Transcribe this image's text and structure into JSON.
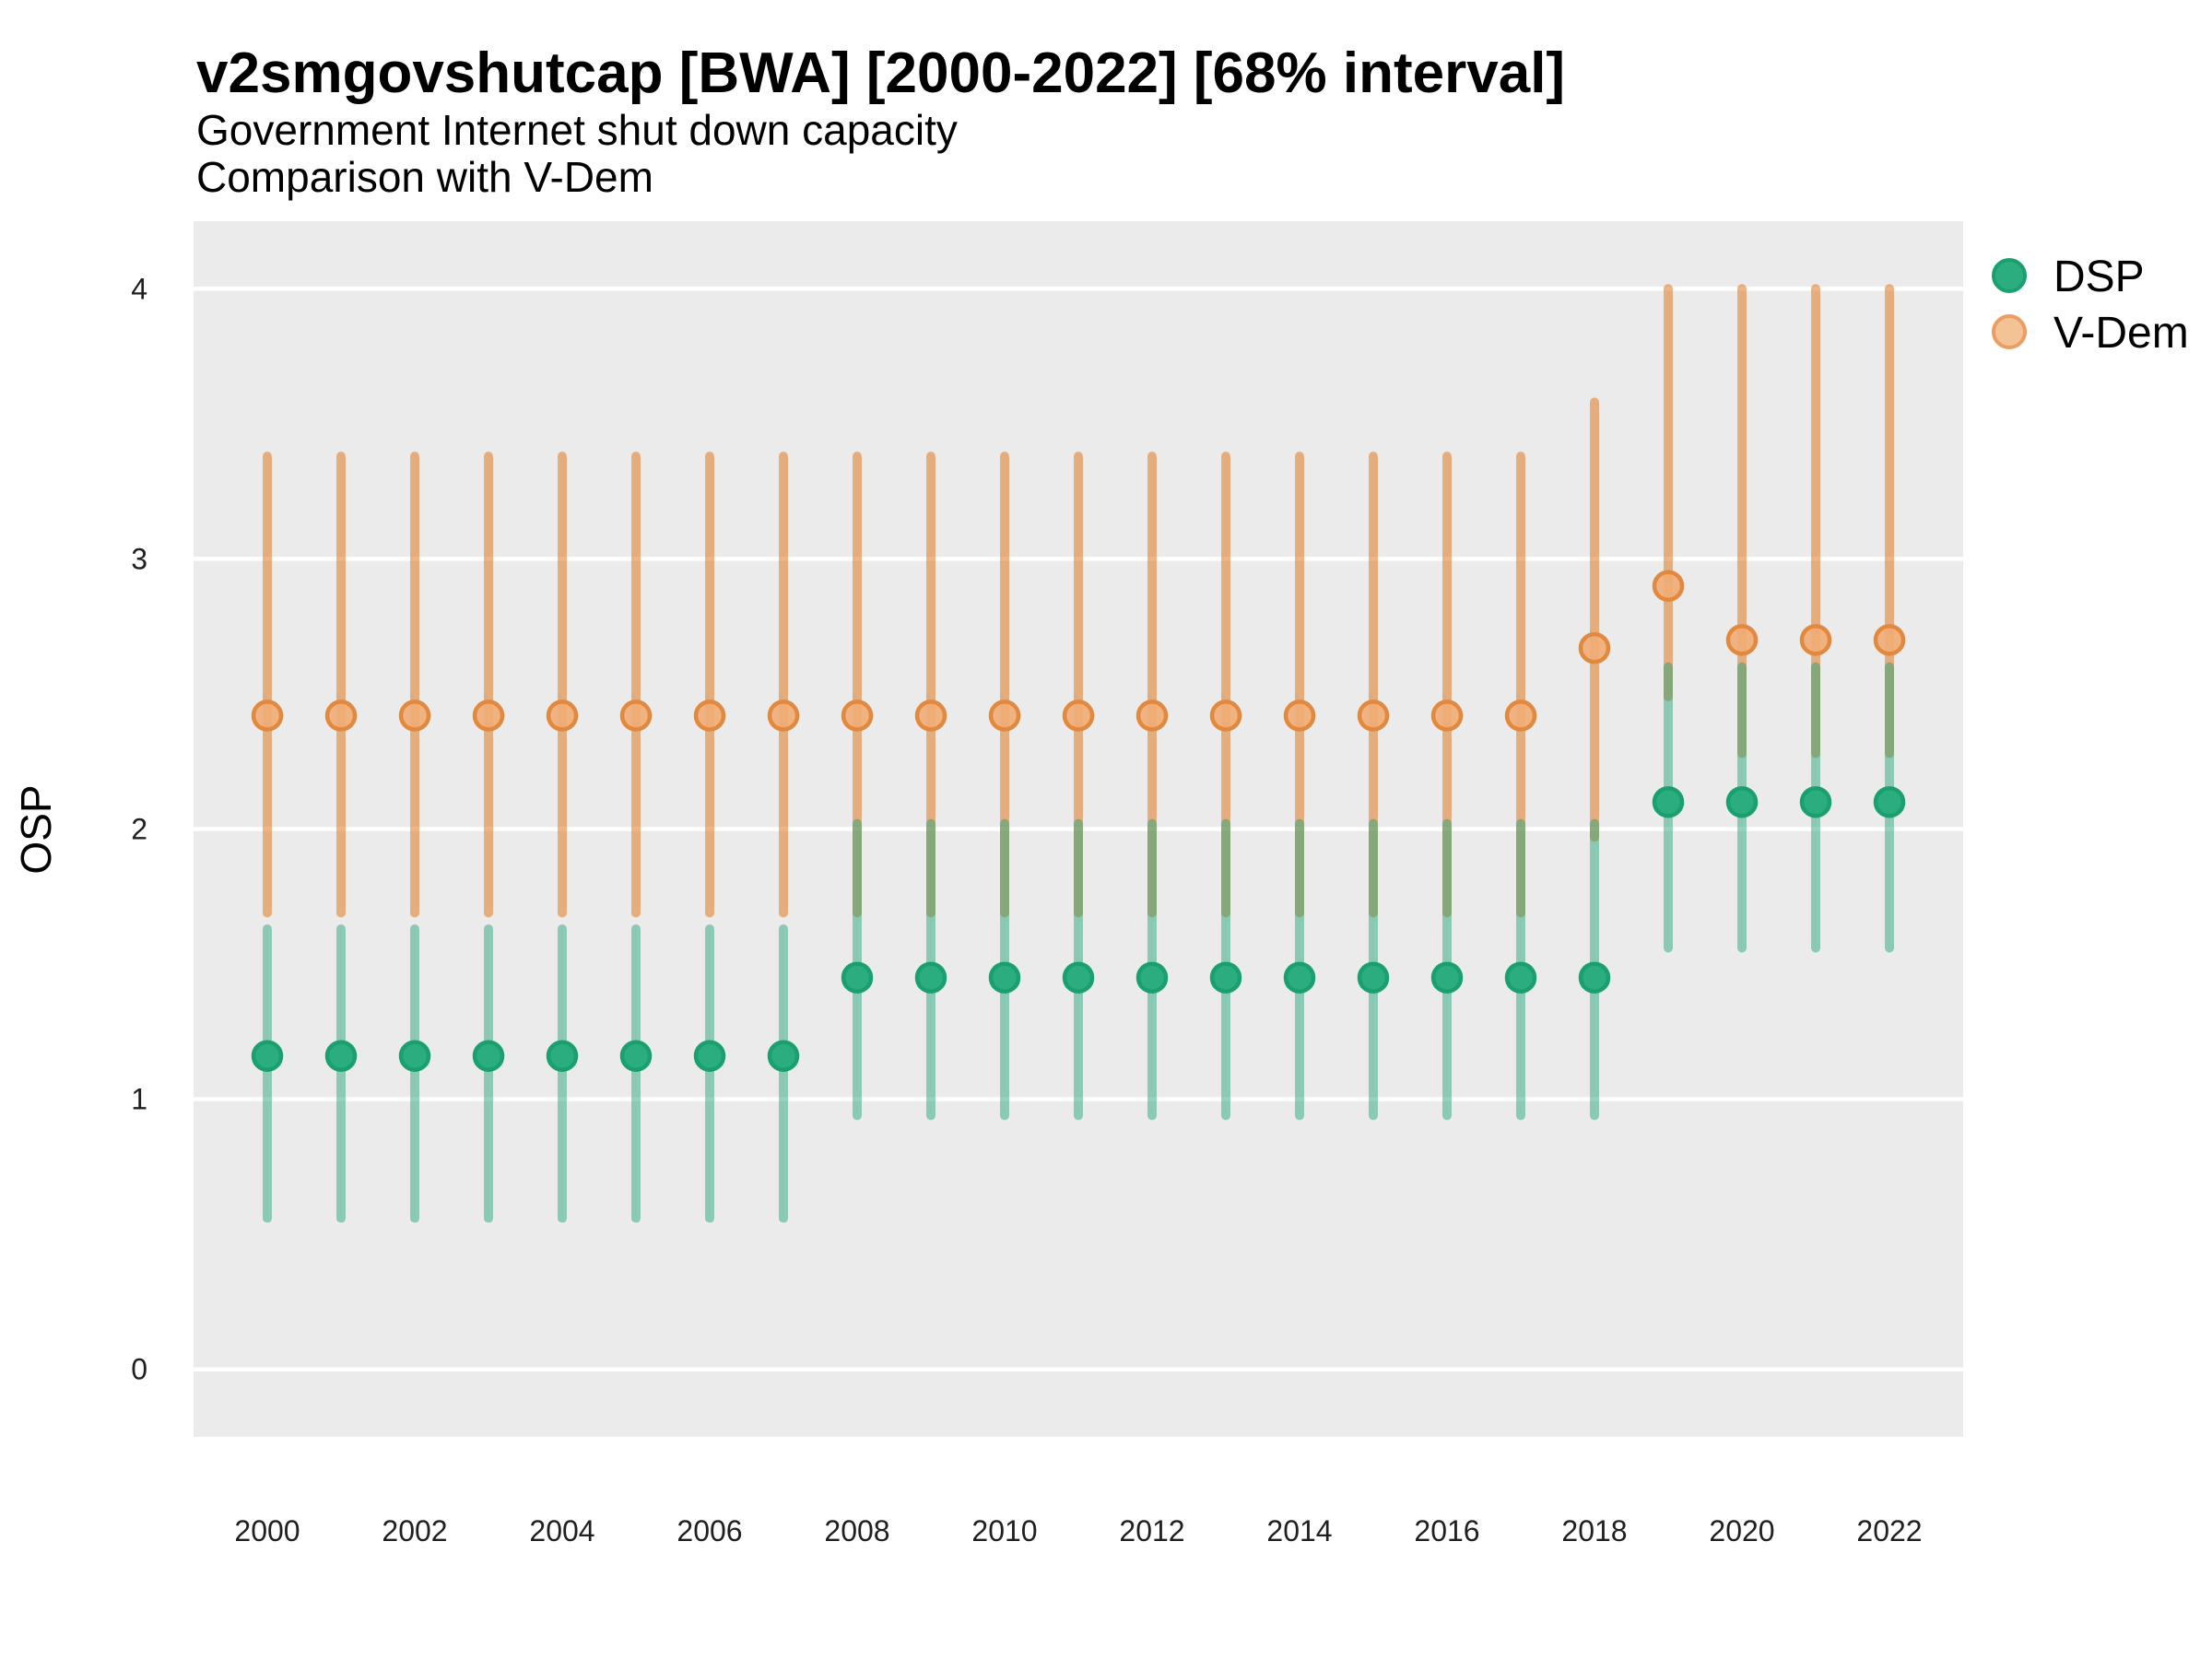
{
  "chart_data": {
    "type": "scatter",
    "title": "v2smgovshutcap [BWA] [2000-2022] [68% interval]",
    "subtitle1": "Government Internet shut down capacity",
    "subtitle2": "Comparison with V-Dem",
    "xlabel": "",
    "ylabel": "OSP",
    "xlim": [
      1999,
      2023
    ],
    "ylim": [
      -0.25,
      4.25
    ],
    "x_ticks": [
      2000,
      2002,
      2004,
      2006,
      2008,
      2010,
      2012,
      2014,
      2016,
      2018,
      2020,
      2022
    ],
    "y_ticks": [
      0,
      1,
      2,
      3,
      4
    ],
    "grid": "on",
    "legend_position": "right-top",
    "colors": {
      "panel_bg": "#EBEBEB",
      "grid": "#FFFFFF",
      "dsp_point": "#2CAD80",
      "dsp_point_stroke": "#1AA06F",
      "dsp_interval": "rgba(32,162,117,0.48)",
      "vdem_point": "#EFAC74",
      "vdem_point_stroke": "#E0893F",
      "vdem_interval": "rgba(226,135,60,0.62)"
    },
    "legend": {
      "items": [
        {
          "label": "DSP",
          "fill": "#2CAD80",
          "stroke": "#1AA06F"
        },
        {
          "label": "V-Dem",
          "fill": "#F3C295",
          "stroke": "#EC9D61"
        }
      ]
    },
    "series": [
      {
        "name": "DSP",
        "points": [
          {
            "year": 2000,
            "value": 1.16,
            "lo": 0.56,
            "hi": 1.63
          },
          {
            "year": 2001,
            "value": 1.16,
            "lo": 0.56,
            "hi": 1.63
          },
          {
            "year": 2002,
            "value": 1.16,
            "lo": 0.56,
            "hi": 1.63
          },
          {
            "year": 2003,
            "value": 1.16,
            "lo": 0.56,
            "hi": 1.63
          },
          {
            "year": 2004,
            "value": 1.16,
            "lo": 0.56,
            "hi": 1.63
          },
          {
            "year": 2005,
            "value": 1.16,
            "lo": 0.56,
            "hi": 1.63
          },
          {
            "year": 2006,
            "value": 1.16,
            "lo": 0.56,
            "hi": 1.63
          },
          {
            "year": 2007,
            "value": 1.16,
            "lo": 0.56,
            "hi": 1.63
          },
          {
            "year": 2008,
            "value": 1.45,
            "lo": 0.94,
            "hi": 2.02
          },
          {
            "year": 2009,
            "value": 1.45,
            "lo": 0.94,
            "hi": 2.02
          },
          {
            "year": 2010,
            "value": 1.45,
            "lo": 0.94,
            "hi": 2.02
          },
          {
            "year": 2011,
            "value": 1.45,
            "lo": 0.94,
            "hi": 2.02
          },
          {
            "year": 2012,
            "value": 1.45,
            "lo": 0.94,
            "hi": 2.02
          },
          {
            "year": 2013,
            "value": 1.45,
            "lo": 0.94,
            "hi": 2.02
          },
          {
            "year": 2014,
            "value": 1.45,
            "lo": 0.94,
            "hi": 2.02
          },
          {
            "year": 2015,
            "value": 1.45,
            "lo": 0.94,
            "hi": 2.02
          },
          {
            "year": 2016,
            "value": 1.45,
            "lo": 0.94,
            "hi": 2.02
          },
          {
            "year": 2017,
            "value": 1.45,
            "lo": 0.94,
            "hi": 2.02
          },
          {
            "year": 2018,
            "value": 1.45,
            "lo": 0.94,
            "hi": 2.02
          },
          {
            "year": 2019,
            "value": 2.1,
            "lo": 1.56,
            "hi": 2.6
          },
          {
            "year": 2020,
            "value": 2.1,
            "lo": 1.56,
            "hi": 2.6
          },
          {
            "year": 2021,
            "value": 2.1,
            "lo": 1.56,
            "hi": 2.6
          },
          {
            "year": 2022,
            "value": 2.1,
            "lo": 1.56,
            "hi": 2.6
          }
        ]
      },
      {
        "name": "V-Dem",
        "points": [
          {
            "year": 2000,
            "value": 2.42,
            "lo": 1.69,
            "hi": 3.38
          },
          {
            "year": 2001,
            "value": 2.42,
            "lo": 1.69,
            "hi": 3.38
          },
          {
            "year": 2002,
            "value": 2.42,
            "lo": 1.69,
            "hi": 3.38
          },
          {
            "year": 2003,
            "value": 2.42,
            "lo": 1.69,
            "hi": 3.38
          },
          {
            "year": 2004,
            "value": 2.42,
            "lo": 1.69,
            "hi": 3.38
          },
          {
            "year": 2005,
            "value": 2.42,
            "lo": 1.69,
            "hi": 3.38
          },
          {
            "year": 2006,
            "value": 2.42,
            "lo": 1.69,
            "hi": 3.38
          },
          {
            "year": 2007,
            "value": 2.42,
            "lo": 1.69,
            "hi": 3.38
          },
          {
            "year": 2008,
            "value": 2.42,
            "lo": 1.69,
            "hi": 3.38
          },
          {
            "year": 2009,
            "value": 2.42,
            "lo": 1.69,
            "hi": 3.38
          },
          {
            "year": 2010,
            "value": 2.42,
            "lo": 1.69,
            "hi": 3.38
          },
          {
            "year": 2011,
            "value": 2.42,
            "lo": 1.69,
            "hi": 3.38
          },
          {
            "year": 2012,
            "value": 2.42,
            "lo": 1.69,
            "hi": 3.38
          },
          {
            "year": 2013,
            "value": 2.42,
            "lo": 1.69,
            "hi": 3.38
          },
          {
            "year": 2014,
            "value": 2.42,
            "lo": 1.69,
            "hi": 3.38
          },
          {
            "year": 2015,
            "value": 2.42,
            "lo": 1.69,
            "hi": 3.38
          },
          {
            "year": 2016,
            "value": 2.42,
            "lo": 1.69,
            "hi": 3.38
          },
          {
            "year": 2017,
            "value": 2.42,
            "lo": 1.69,
            "hi": 3.38
          },
          {
            "year": 2018,
            "value": 2.67,
            "lo": 1.97,
            "hi": 3.58
          },
          {
            "year": 2019,
            "value": 2.9,
            "lo": 2.49,
            "hi": 4.0
          },
          {
            "year": 2020,
            "value": 2.7,
            "lo": 2.28,
            "hi": 4.0
          },
          {
            "year": 2021,
            "value": 2.7,
            "lo": 2.28,
            "hi": 4.0
          },
          {
            "year": 2022,
            "value": 2.7,
            "lo": 2.28,
            "hi": 4.0
          }
        ]
      }
    ]
  }
}
